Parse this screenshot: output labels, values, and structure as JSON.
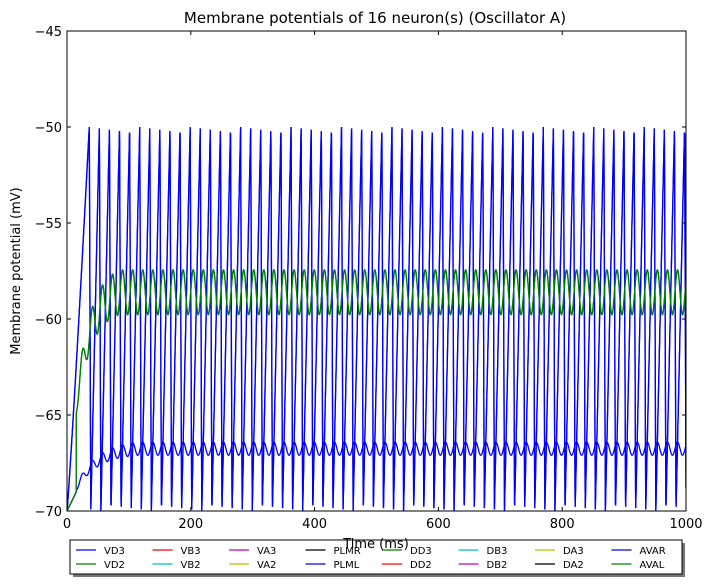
{
  "chart_data": {
    "type": "line",
    "title": "Membrane potentials of 16 neuron(s) (Oscillator A)",
    "xlabel": "Time (ms)",
    "ylabel": "Membrane potential (mV)",
    "xlim": [
      0,
      1000
    ],
    "ylim": [
      -70,
      -45
    ],
    "xticks": [
      0,
      200,
      400,
      600,
      800,
      1000
    ],
    "yticks": [
      -70,
      -65,
      -60,
      -55,
      -50,
      -45
    ],
    "grid": false,
    "legend_position": "bottom-outside",
    "legend_columns": 8,
    "oscillation": {
      "period_ms": 16.3,
      "first_spike_ms": 36,
      "spike_count": 60
    },
    "series": [
      {
        "name": "VD3",
        "color": "#0000ff",
        "kind": "spiking",
        "peak": -50,
        "trough": -70
      },
      {
        "name": "VD2",
        "color": "#008000",
        "kind": "graded",
        "peak": -57.1,
        "trough": -59.5
      },
      {
        "name": "VB3",
        "color": "#ff0000",
        "kind": "hidden"
      },
      {
        "name": "VB2",
        "color": "#00bfbf",
        "kind": "hidden"
      },
      {
        "name": "VA3",
        "color": "#bf00bf",
        "kind": "hidden"
      },
      {
        "name": "VA2",
        "color": "#bfbf00",
        "kind": "hidden"
      },
      {
        "name": "PLMR",
        "color": "#000000",
        "kind": "hidden"
      },
      {
        "name": "PLML",
        "color": "#0000ff",
        "kind": "graded",
        "peak": -66.3,
        "trough": -67.0
      },
      {
        "name": "DD3",
        "color": "#008000",
        "kind": "hidden"
      },
      {
        "name": "DD2",
        "color": "#ff0000",
        "kind": "hidden"
      },
      {
        "name": "DB3",
        "color": "#00bfbf",
        "kind": "hidden"
      },
      {
        "name": "DB2",
        "color": "#bf00bf",
        "kind": "hidden"
      },
      {
        "name": "DA3",
        "color": "#bfbf00",
        "kind": "hidden"
      },
      {
        "name": "DA2",
        "color": "#000000",
        "kind": "hidden"
      },
      {
        "name": "AVAR",
        "color": "#0000ff",
        "kind": "spiking",
        "peak": -50,
        "trough": -70
      },
      {
        "name": "AVAL",
        "color": "#008000",
        "kind": "graded",
        "peak": -57.1,
        "trough": -59.5
      }
    ]
  }
}
